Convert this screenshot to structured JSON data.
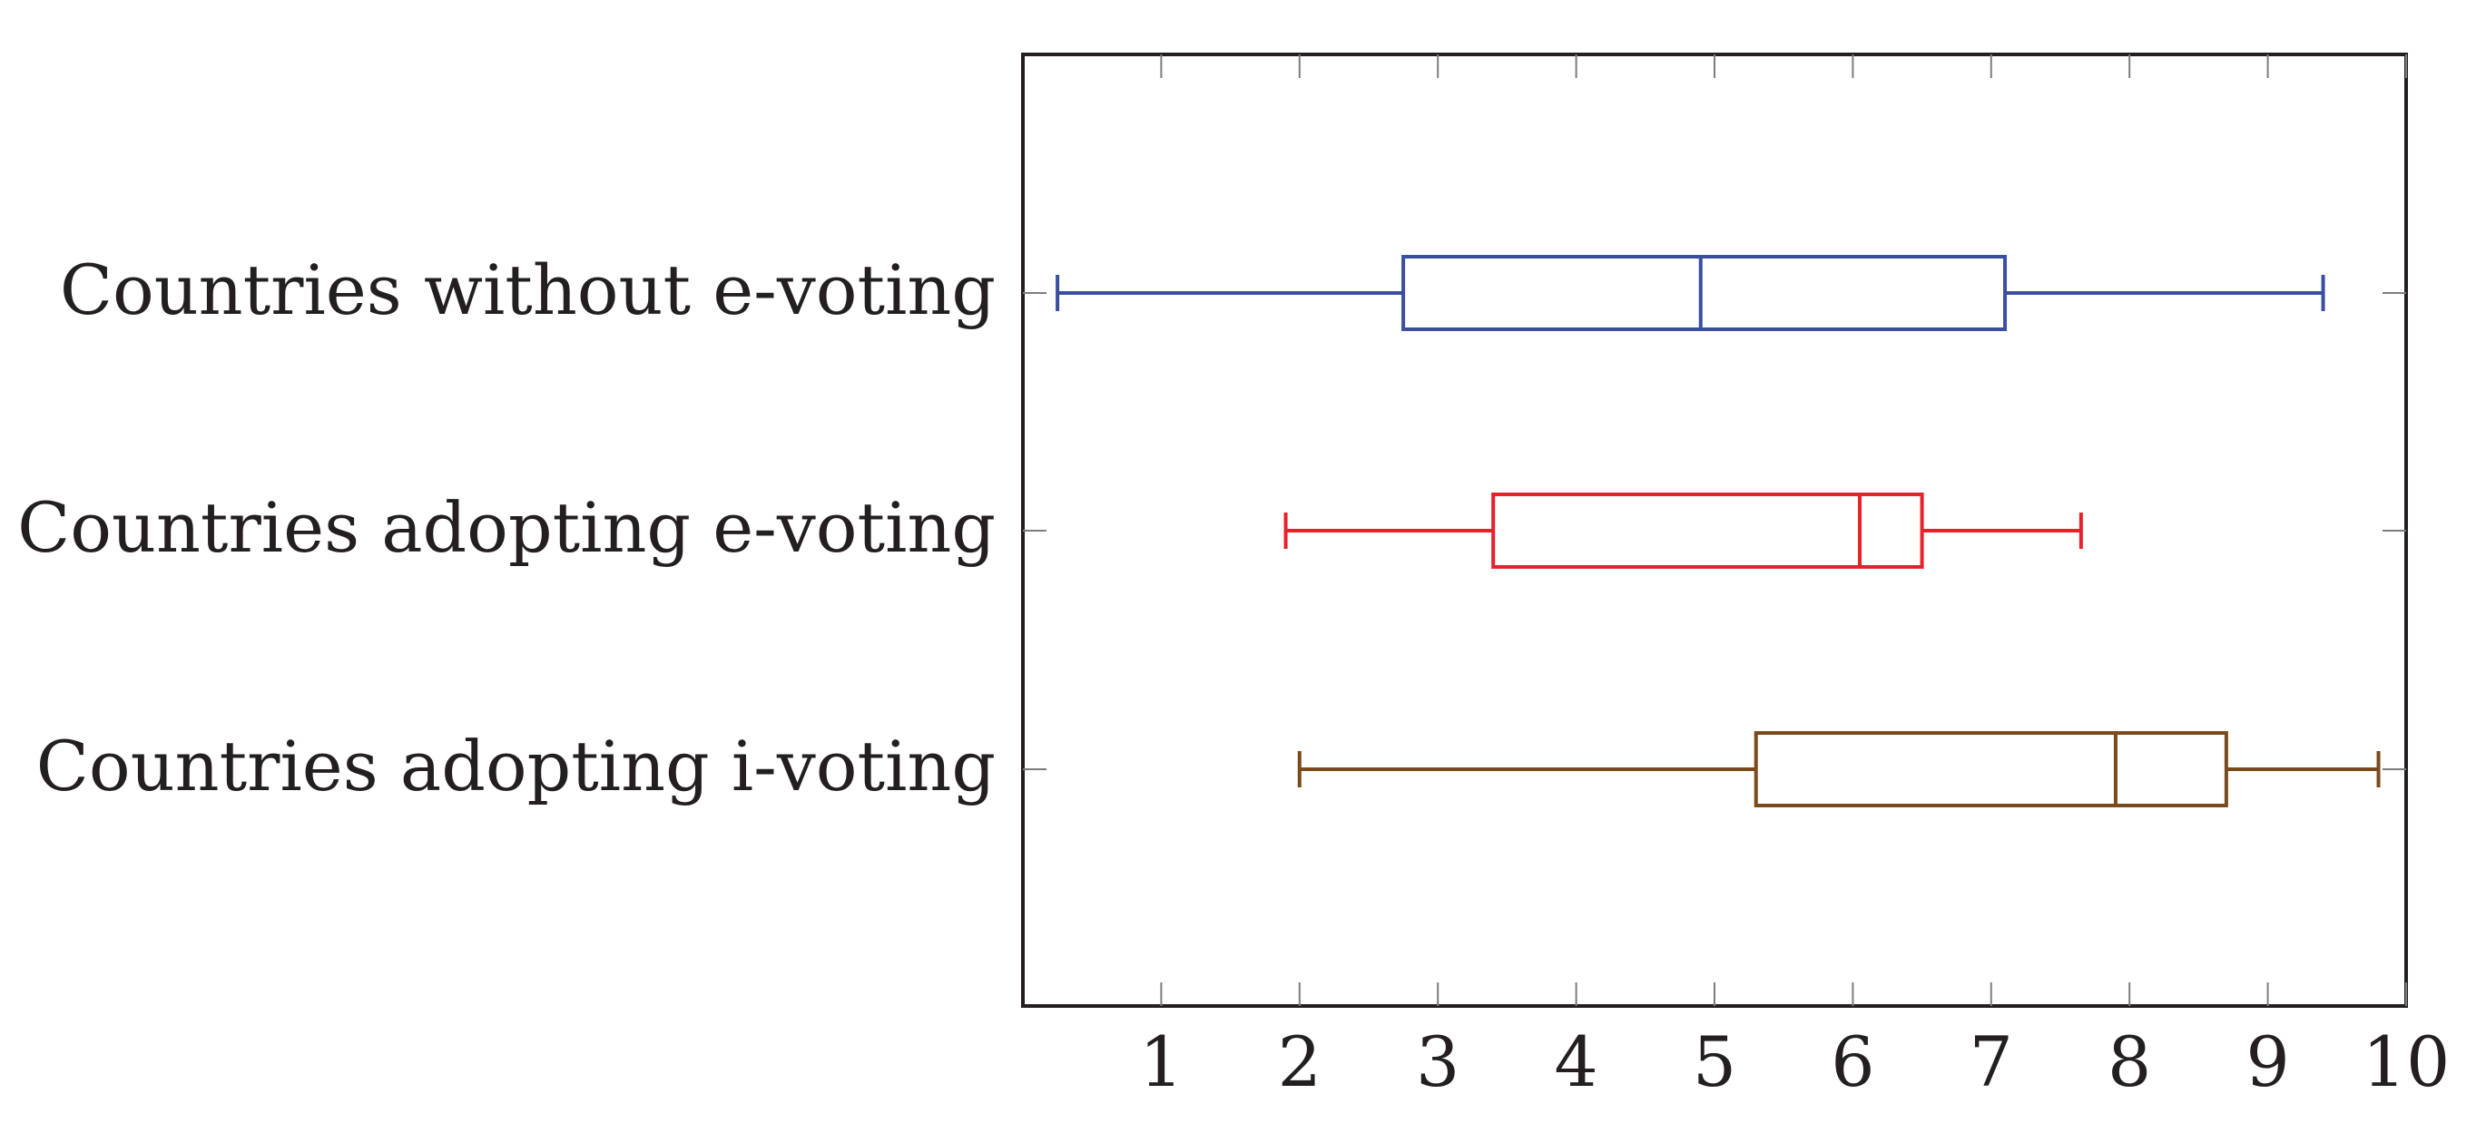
{
  "chart_data": {
    "type": "boxplot",
    "orientation": "horizontal",
    "title": "",
    "xlabel": "",
    "ylabel": "",
    "xlim": [
      0.0,
      10.0
    ],
    "x_ticks": [
      1,
      2,
      3,
      4,
      5,
      6,
      7,
      8,
      9,
      10
    ],
    "grid": false,
    "legend": "none",
    "series": [
      {
        "category": "Countries without e-voting",
        "color": "#3b4fa0",
        "min": 0.25,
        "q1": 2.75,
        "median": 4.9,
        "q3": 7.1,
        "max": 9.4
      },
      {
        "category": "Countries adopting e-voting",
        "color": "#e8212b",
        "min": 1.9,
        "q1": 3.4,
        "median": 6.05,
        "q3": 6.5,
        "max": 7.65
      },
      {
        "category": "Countries adopting i-voting",
        "color": "#7a4a1c",
        "min": 2.0,
        "q1": 5.3,
        "median": 7.9,
        "q3": 8.7,
        "max": 9.8
      }
    ]
  }
}
